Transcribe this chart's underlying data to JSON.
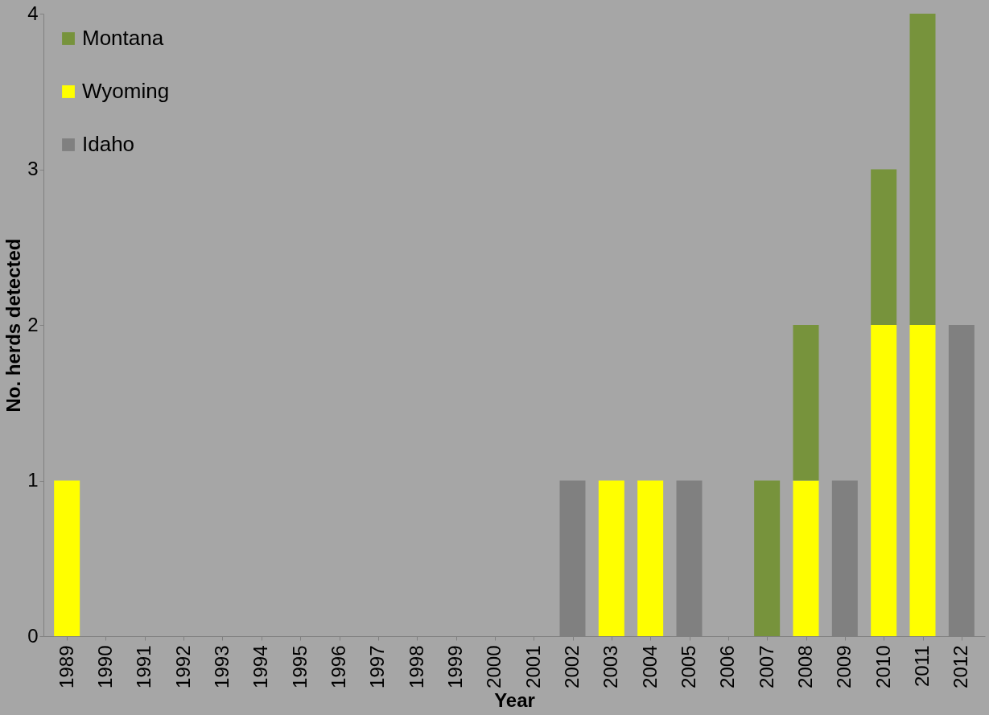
{
  "chart_data": {
    "type": "bar",
    "stacked": true,
    "xlabel": "Year",
    "ylabel": "No. herds detected",
    "categories": [
      "1989",
      "1990",
      "1991",
      "1992",
      "1993",
      "1994",
      "1995",
      "1996",
      "1997",
      "1998",
      "1999",
      "2000",
      "2001",
      "2002",
      "2003",
      "2004",
      "2005",
      "2006",
      "2007",
      "2008",
      "2009",
      "2010",
      "2011",
      "2012"
    ],
    "series": [
      {
        "name": "Idaho",
        "color": "#808080",
        "values": [
          0,
          0,
          0,
          0,
          0,
          0,
          0,
          0,
          0,
          0,
          0,
          0,
          0,
          1,
          0,
          0,
          1,
          0,
          0,
          0,
          1,
          0,
          0,
          2
        ]
      },
      {
        "name": "Wyoming",
        "color": "#ffff00",
        "values": [
          1,
          0,
          0,
          0,
          0,
          0,
          0,
          0,
          0,
          0,
          0,
          0,
          0,
          0,
          1,
          1,
          0,
          0,
          0,
          1,
          0,
          2,
          2,
          0
        ]
      },
      {
        "name": "Montana",
        "color": "#77933c",
        "values": [
          0,
          0,
          0,
          0,
          0,
          0,
          0,
          0,
          0,
          0,
          0,
          0,
          0,
          0,
          0,
          0,
          0,
          0,
          1,
          1,
          0,
          1,
          2,
          0
        ]
      }
    ],
    "ylim": [
      0,
      4
    ],
    "yticks": [
      0,
      1,
      2,
      3,
      4
    ],
    "grid": false,
    "legend": "top left"
  }
}
